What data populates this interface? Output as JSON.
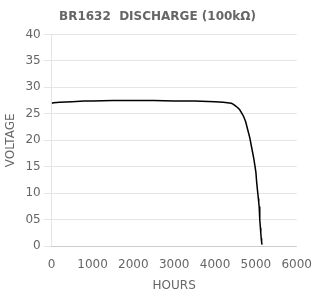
{
  "chart_data": {
    "type": "line",
    "title": "BR1632  DISCHARGE (100kΩ)",
    "xlabel": "HOURS",
    "ylabel": "VOLTAGE",
    "x": [
      0,
      50,
      200,
      500,
      800,
      1000,
      1500,
      2000,
      2500,
      3000,
      3500,
      4000,
      4200,
      4300,
      4400,
      4450,
      4500,
      4550,
      4600,
      4650,
      4700,
      4750,
      4800,
      4850,
      4900,
      4950,
      5000,
      5020,
      5040,
      5060,
      5070,
      5080,
      5090,
      5100,
      5110,
      5120,
      5130,
      5140,
      5150
    ],
    "values": [
      27.0,
      27.1,
      27.2,
      27.3,
      27.4,
      27.4,
      27.5,
      27.5,
      27.5,
      27.4,
      27.4,
      27.3,
      27.2,
      27.1,
      27.0,
      26.8,
      26.5,
      26.2,
      25.8,
      25.2,
      24.5,
      23.5,
      22.0,
      20.5,
      18.5,
      16.5,
      14.0,
      12.0,
      10.5,
      9.0,
      8.2,
      7.5,
      6.5,
      5.0,
      3.5,
      2.5,
      1.5,
      0.8,
      0.3
    ],
    "color": "#000000",
    "xlim": [
      0,
      6000
    ],
    "ylim": [
      0,
      40
    ],
    "xticks": [
      0,
      1000,
      2000,
      3000,
      4000,
      5000,
      6000
    ],
    "yticks": [
      0,
      {
        "value": 5,
        "label": "05"
      },
      10,
      15,
      20,
      25,
      30,
      35,
      40
    ],
    "grid": "y"
  }
}
